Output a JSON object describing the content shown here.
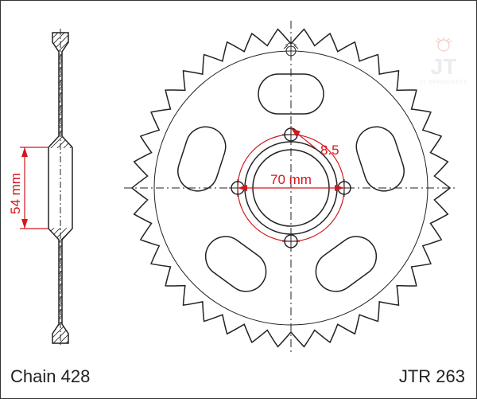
{
  "part_number": "JTR 263",
  "chain_label": "Chain 428",
  "dimensions": {
    "bolt_circle_diameter_mm": 70,
    "bolt_hole_diameter_mm": 8.5,
    "hub_bore_height_mm": 54,
    "bcd_label": "70 mm",
    "hole_label": "8.5",
    "height_label": "54 mm"
  },
  "geometry": {
    "tooth_count": 38,
    "bolt_hole_count": 4,
    "lightening_slot_count": 5
  },
  "colors": {
    "dimension": "#d4161d",
    "outline": "#222222",
    "background": "#ffffff",
    "logo_tint": "#c94b1f"
  },
  "brand": "JT SPROCKETS"
}
